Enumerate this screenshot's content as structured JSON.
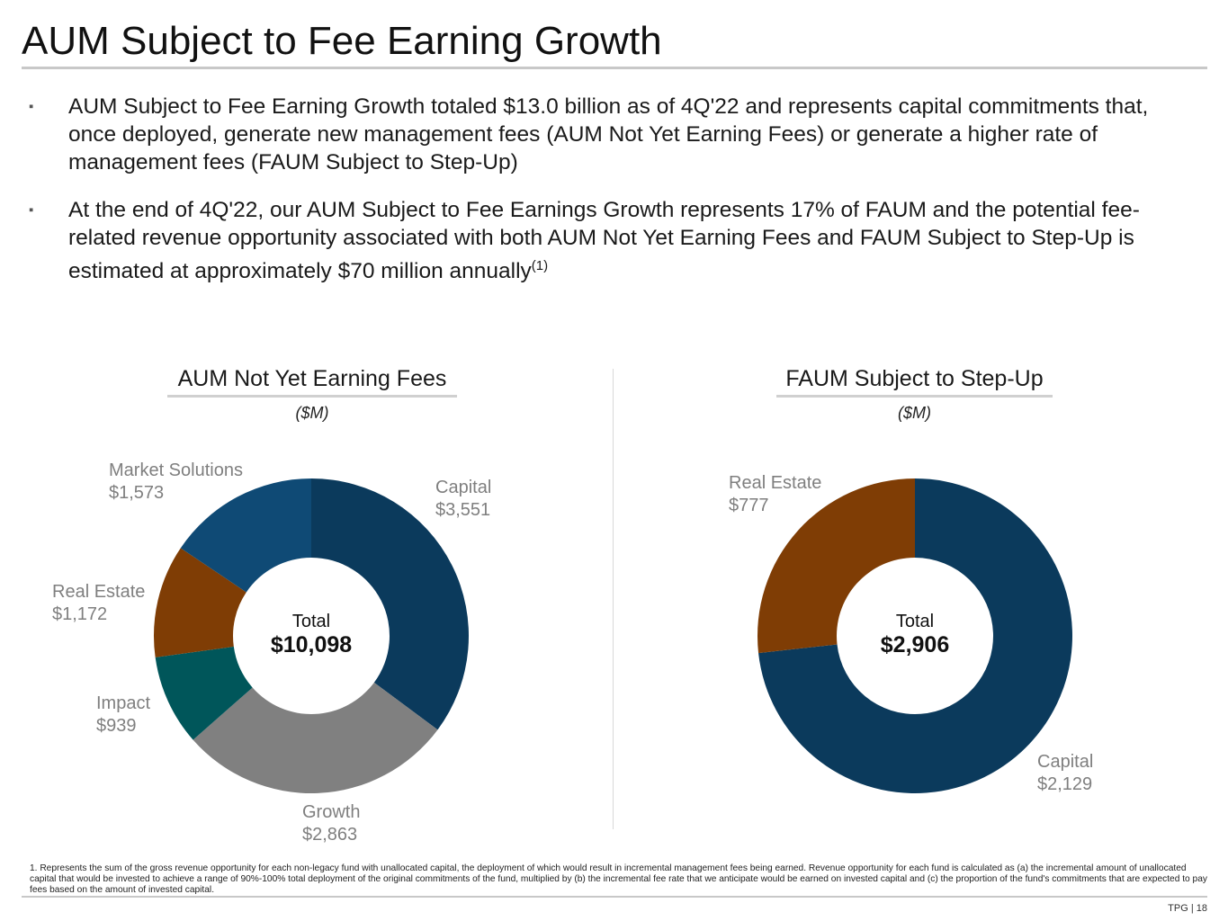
{
  "title": "AUM Subject to Fee Earning Growth",
  "bullets": [
    {
      "marker": "▪",
      "text": "AUM Subject to Fee Earning Growth totaled $13.0 billion as of 4Q'22 and represents capital commitments that, once deployed, generate new management fees (AUM Not Yet Earning Fees) or generate a higher rate of management fees (FAUM Subject to Step-Up)"
    },
    {
      "marker": "▪",
      "text": "At the end of 4Q'22, our AUM Subject to Fee Earnings Growth represents 17% of FAUM and the potential fee-related revenue opportunity associated with both AUM Not Yet Earning Fees and FAUM Subject to Step-Up is estimated at approximately $70 million annually",
      "sup": "(1)"
    }
  ],
  "chart_data": [
    {
      "type": "pie",
      "variant": "donut",
      "title": "AUM Not Yet Earning Fees",
      "unit": "($M)",
      "center_label": "Total",
      "center_value": "$10,098",
      "series": [
        {
          "name": "Capital",
          "value": 3551,
          "display": "$3,551",
          "color": "#0b3a5c"
        },
        {
          "name": "Growth",
          "value": 2863,
          "display": "$2,863",
          "color": "#808080"
        },
        {
          "name": "Impact",
          "value": 939,
          "display": "$939",
          "color": "#00565a"
        },
        {
          "name": "Real Estate",
          "value": 1172,
          "display": "$1,172",
          "color": "#7f3d05"
        },
        {
          "name": "Market Solutions",
          "value": 1573,
          "display": "$1,573",
          "color": "#0f4a75"
        }
      ]
    },
    {
      "type": "pie",
      "variant": "donut",
      "title": "FAUM Subject to Step-Up",
      "unit": "($M)",
      "center_label": "Total",
      "center_value": "$2,906",
      "series": [
        {
          "name": "Capital",
          "value": 2129,
          "display": "$2,129",
          "color": "#0b3a5c"
        },
        {
          "name": "Real Estate",
          "value": 777,
          "display": "$777",
          "color": "#7f3d05"
        }
      ]
    }
  ],
  "footnote": "1. Represents the sum of the gross revenue opportunity for each non-legacy fund with unallocated capital, the deployment of which would result in incremental management fees being earned. Revenue opportunity for each fund is calculated as (a) the incremental amount of unallocated capital that would be invested to achieve a range of 90%-100% total deployment of the original commitments of the fund, multiplied by (b) the incremental fee rate that we anticipate would be earned on invested capital and (c) the proportion of the fund's commitments that are expected to pay fees based on the amount of invested capital.",
  "page_label": "TPG | 18"
}
